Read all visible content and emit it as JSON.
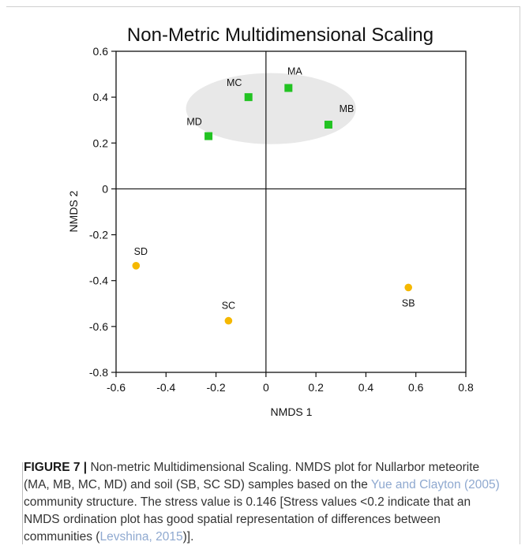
{
  "chart_data": {
    "type": "scatter",
    "title": "Non-Metric Multidimensional Scaling",
    "xlabel": "NMDS 1",
    "ylabel": "NMDS 2",
    "xlim": [
      -0.6,
      0.8
    ],
    "ylim": [
      -0.8,
      0.6
    ],
    "xticks": [
      "-0.6",
      "-0.4",
      "-0.2",
      "0",
      "0.2",
      "0.4",
      "0.6",
      "0.8"
    ],
    "yticks": [
      "0.6",
      "0.4",
      "0.2",
      "0",
      "-0.2",
      "-0.4",
      "-0.6",
      "-0.8"
    ],
    "grid": false,
    "zero_lines": true,
    "ellipse": {
      "group": "meteorite",
      "center": [
        0.02,
        0.35
      ],
      "radius": [
        0.34,
        0.155
      ],
      "color": "#e8e8e8"
    },
    "series": [
      {
        "name": "",
        "group": "meteorite",
        "marker": "square",
        "color": "#22c322",
        "points": [
          {
            "label": "MA",
            "x": 0.09,
            "y": 0.44
          },
          {
            "label": "MB",
            "x": 0.25,
            "y": 0.28
          },
          {
            "label": "MC",
            "x": -0.07,
            "y": 0.4
          },
          {
            "label": "MD",
            "x": -0.23,
            "y": 0.23
          }
        ]
      },
      {
        "name": "",
        "group": "soil",
        "marker": "circle",
        "color": "#f5b800",
        "points": [
          {
            "label": "SB",
            "x": 0.57,
            "y": -0.43
          },
          {
            "label": "SC",
            "x": -0.15,
            "y": -0.575
          },
          {
            "label": "SD",
            "x": -0.52,
            "y": -0.335
          }
        ]
      }
    ]
  },
  "caption": {
    "figure_label": "FIGURE 7 |",
    "text_1": " Non-metric Multidimensional Scaling. NMDS plot for Nullarbor meteorite (MA, MB, MC, MD) and soil (SB, SC SD) samples based on the ",
    "ref_1": "Yue and Clayton (2005)",
    "text_2": " community structure. The stress value is 0.146 [Stress values <0.2 indicate that an NMDS ordination plot has good spatial representation of differences between communities (",
    "ref_2": "Levshina, 2015",
    "text_3": ")]."
  }
}
